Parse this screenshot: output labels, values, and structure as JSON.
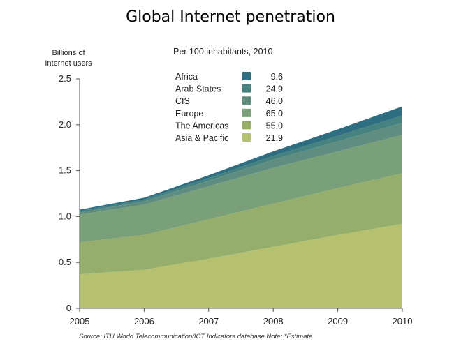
{
  "slide": {
    "title": "Global Internet penetration"
  },
  "chart_data": {
    "type": "area",
    "stacked": true,
    "ylabel": "Billions of Internet users",
    "ylim": [
      0,
      2.5
    ],
    "yticks": [
      "0",
      "0.5",
      "1.0",
      "1.5",
      "2.0",
      "2.5"
    ],
    "ytick_values": [
      0,
      0.5,
      1.0,
      1.5,
      2.0,
      2.5
    ],
    "x": [
      "2005",
      "2006",
      "2007",
      "2008",
      "2009",
      "2010"
    ],
    "grid": false,
    "legend": {
      "title": "Per 100 inhabitants, 2010",
      "placement": "top-center",
      "entries": [
        {
          "name": "Africa",
          "value": "9.6"
        },
        {
          "name": "Arab States",
          "value": "24.9"
        },
        {
          "name": "CIS",
          "value": "46.0"
        },
        {
          "name": "Europe",
          "value": "65.0"
        },
        {
          "name": "The Americas",
          "value": "55.0"
        },
        {
          "name": "Asia & Pacific",
          "value": "21.9"
        }
      ]
    },
    "series": [
      {
        "name": "Asia & Pacific",
        "color": "#b5c16e",
        "values": [
          0.37,
          0.42,
          0.54,
          0.67,
          0.8,
          0.92
        ]
      },
      {
        "name": "The Americas",
        "color": "#95ae6c",
        "values": [
          0.35,
          0.38,
          0.43,
          0.47,
          0.51,
          0.55
        ]
      },
      {
        "name": "Europe",
        "color": "#7aa07a",
        "values": [
          0.3,
          0.33,
          0.36,
          0.39,
          0.4,
          0.42
        ]
      },
      {
        "name": "CIS",
        "color": "#5f8e80",
        "values": [
          0.025,
          0.035,
          0.06,
          0.09,
          0.11,
          0.13
        ]
      },
      {
        "name": "Arab States",
        "color": "#468380",
        "values": [
          0.015,
          0.02,
          0.03,
          0.04,
          0.06,
          0.08
        ]
      },
      {
        "name": "Africa",
        "color": "#2e6e80",
        "values": [
          0.015,
          0.02,
          0.03,
          0.05,
          0.07,
          0.1
        ]
      }
    ],
    "source": "Source: ITU World Telecommunication/ICT Indicators database   Note: *Estimate"
  }
}
